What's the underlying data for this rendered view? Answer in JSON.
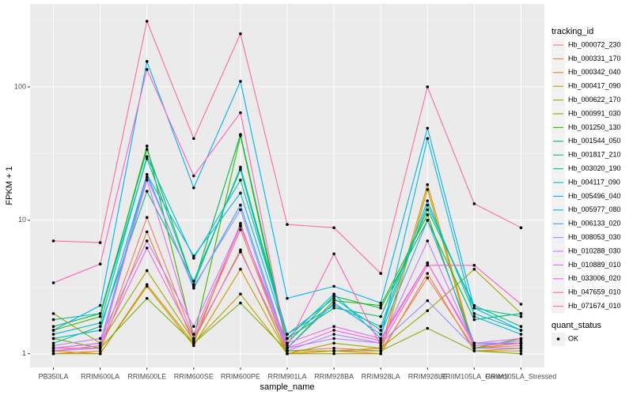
{
  "chart_data": {
    "type": "line",
    "log_y": true,
    "grid": true,
    "x_label": "sample_name",
    "y_label": "FPKM + 1",
    "categories": [
      "PB350LA",
      "RRIM600LA",
      "RRIM600LE",
      "RRIM600SE",
      "RRIM600PE",
      "RRIM901LA",
      "RRIM928BA",
      "RRIM928LA",
      "RRIM928LE",
      "RRIIM105LA_Control",
      "RRIM105LA_Stressed"
    ],
    "ylim": [
      0.79,
      418
    ],
    "yticks": [
      1,
      10,
      100
    ],
    "legend_title": "tracking_id",
    "point_color": "#000000",
    "status_legend": {
      "title": "quant_status",
      "entries": [
        "OK"
      ]
    },
    "series": [
      {
        "name": "Hb_000072_230",
        "color": "#F8766D",
        "values": [
          1.1,
          1.1,
          10.5,
          1.3,
          8.5,
          1.05,
          1.1,
          1.05,
          3.7,
          1.1,
          1.15
        ]
      },
      {
        "name": "Hb_000331_170",
        "color": "#EA8331",
        "values": [
          1.0,
          1.05,
          8.2,
          1.2,
          9.5,
          1.0,
          1.05,
          1.0,
          4.0,
          1.05,
          1.1
        ]
      },
      {
        "name": "Hb_000342_040",
        "color": "#D89000",
        "values": [
          1.05,
          1.0,
          3.2,
          1.15,
          4.3,
          1.0,
          1.05,
          1.1,
          18.5,
          1.1,
          1.2
        ]
      },
      {
        "name": "Hb_000417_090",
        "color": "#C09B00",
        "values": [
          1.0,
          1.0,
          3.3,
          1.2,
          2.8,
          1.0,
          1.0,
          1.0,
          17,
          1.05,
          1.05
        ]
      },
      {
        "name": "Hb_000622_170",
        "color": "#A3A500",
        "values": [
          2.0,
          1.2,
          4.2,
          1.25,
          6.0,
          1.0,
          1.2,
          1.1,
          2.1,
          4.3,
          2.0
        ]
      },
      {
        "name": "Hb_000991_030",
        "color": "#7CAE00",
        "values": [
          1.3,
          1.1,
          2.6,
          1.2,
          2.4,
          1.05,
          1.05,
          1.05,
          1.55,
          1.05,
          1.0
        ]
      },
      {
        "name": "Hb_001250_130",
        "color": "#39B600",
        "values": [
          1.5,
          1.9,
          36,
          1.3,
          43,
          1.1,
          2.5,
          2.3,
          11,
          1.1,
          1.3
        ]
      },
      {
        "name": "Hb_001544_050",
        "color": "#00BB4E",
        "values": [
          1.6,
          2.0,
          34,
          3.3,
          44,
          1.2,
          2.7,
          2.2,
          10,
          1.8,
          2.0
        ]
      },
      {
        "name": "Hb_001817_210",
        "color": "#00BF7D",
        "values": [
          1.2,
          1.6,
          16.5,
          3.5,
          24,
          1.3,
          2.2,
          1.9,
          12,
          2.3,
          1.6
        ]
      },
      {
        "name": "Hb_003020_190",
        "color": "#00C1A3",
        "values": [
          1.8,
          2.0,
          29,
          3.3,
          25,
          1.4,
          2.6,
          1.5,
          13,
          2.2,
          1.9
        ]
      },
      {
        "name": "Hb_004117_090",
        "color": "#00BFC4",
        "values": [
          1.4,
          1.7,
          30,
          5.2,
          20,
          1.4,
          2.3,
          1.6,
          14,
          2.0,
          1.5
        ]
      },
      {
        "name": "Hb_005496_040",
        "color": "#00BAE0",
        "values": [
          1.3,
          1.5,
          22,
          5.4,
          16,
          1.3,
          2.8,
          1.3,
          41,
          1.9,
          1.4
        ]
      },
      {
        "name": "Hb_005977_080",
        "color": "#00B0F6",
        "values": [
          1.5,
          2.3,
          155,
          17.5,
          110,
          2.6,
          3.2,
          2.4,
          49,
          2.2,
          1.5
        ]
      },
      {
        "name": "Hb_006133_020",
        "color": "#35A2FF",
        "values": [
          1.1,
          1.2,
          22,
          3.1,
          13,
          1.1,
          2.4,
          1.4,
          10,
          1.2,
          1.2
        ]
      },
      {
        "name": "Hb_008053_030",
        "color": "#9590FF",
        "values": [
          1.05,
          1.1,
          21,
          3.2,
          12,
          1.05,
          1.4,
          1.2,
          2.5,
          1.1,
          1.1
        ]
      },
      {
        "name": "Hb_010288_030",
        "color": "#C77CFF",
        "values": [
          1.15,
          1.3,
          7,
          1.6,
          9.2,
          1.1,
          1.3,
          1.2,
          7,
          1.15,
          1.25
        ]
      },
      {
        "name": "Hb_010889_010",
        "color": "#E76BF3",
        "values": [
          1.1,
          1.2,
          20,
          1.4,
          9,
          1.2,
          1.6,
          1.3,
          4.8,
          1.2,
          1.3
        ]
      },
      {
        "name": "Hb_033006_020",
        "color": "#FA62DB",
        "values": [
          1.05,
          1.15,
          6.2,
          1.3,
          5.8,
          1.1,
          1.5,
          1.25,
          4.8,
          1.15,
          1.2
        ]
      },
      {
        "name": "Hb_047659_010",
        "color": "#FF62BC",
        "values": [
          3.4,
          4.7,
          135,
          21.5,
          64,
          1.15,
          5.6,
          1.15,
          4.6,
          4.6,
          2.35
        ]
      },
      {
        "name": "Hb_071674_010",
        "color": "#FF6C91",
        "values": [
          7,
          6.8,
          310,
          41,
          250,
          9.3,
          8.8,
          4.0,
          100,
          13.3,
          8.8
        ]
      }
    ]
  }
}
